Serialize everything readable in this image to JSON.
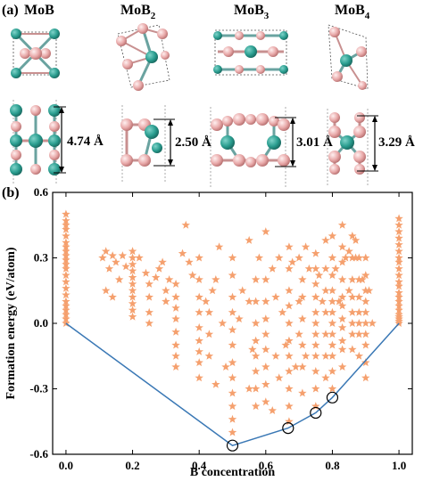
{
  "panel_a": {
    "label": "(a)",
    "structures": [
      {
        "formula_main": "MoB",
        "formula_sub": "",
        "thickness": "4.74 Å"
      },
      {
        "formula_main": "MoB",
        "formula_sub": "2",
        "thickness": "2.50 Å"
      },
      {
        "formula_main": "MoB",
        "formula_sub": "3",
        "thickness": "3.01 Å"
      },
      {
        "formula_main": "MoB",
        "formula_sub": "4",
        "thickness": "3.29 Å"
      }
    ],
    "colors": {
      "mo_atom": "#2a9d8f",
      "b_atom": "#e8a8a8",
      "bond": "#6aa3a0"
    }
  },
  "panel_b": {
    "label": "(b)"
  },
  "chart_data": {
    "type": "scatter",
    "xlabel": "B concentration",
    "ylabel": "Formation energy (eV/atom)",
    "xlim": [
      -0.04,
      1.04
    ],
    "ylim": [
      -0.6,
      0.6
    ],
    "x_ticks": [
      0.0,
      0.2,
      0.4,
      0.6,
      0.8,
      1.0
    ],
    "x_tick_labels": [
      "0.0",
      "0.2",
      "0.4",
      "0.6",
      "0.8",
      "1.0"
    ],
    "y_ticks": [
      -0.6,
      -0.3,
      0.0,
      0.3,
      0.6
    ],
    "y_tick_labels": [
      "-0.6",
      "-0.3",
      "0.0",
      "0.3",
      "0.6"
    ],
    "marker": "star",
    "marker_color": "#f5a06e",
    "hull_color": "#3a78b5",
    "convex_hull": {
      "x": [
        0.0,
        0.5,
        0.667,
        0.75,
        0.8,
        1.0
      ],
      "y": [
        0.0,
        -0.56,
        -0.48,
        -0.41,
        -0.34,
        0.0
      ]
    },
    "stable_circled": {
      "x": [
        0.5,
        0.667,
        0.75,
        0.8
      ],
      "y": [
        -0.56,
        -0.48,
        -0.41,
        -0.34
      ]
    },
    "series": [
      {
        "x": [
          0.0,
          0.0,
          0.0,
          0.0,
          0.0,
          0.0,
          0.0,
          0.0,
          0.0,
          0.0,
          0.0,
          0.0,
          0.0,
          0.0,
          0.0,
          0.0,
          0.0,
          0.0,
          0.0,
          0.0,
          0.0,
          0.0,
          0.11,
          0.12,
          0.13,
          0.14,
          0.15,
          0.16,
          0.12,
          0.14,
          0.17,
          0.18,
          0.2,
          0.2,
          0.2,
          0.2,
          0.2,
          0.2,
          0.2,
          0.2,
          0.2,
          0.2,
          0.2,
          0.22,
          0.24,
          0.25,
          0.25,
          0.25,
          0.25,
          0.27,
          0.28,
          0.29,
          0.3,
          0.3,
          0.31,
          0.33,
          0.33,
          0.33,
          0.33,
          0.33,
          0.33,
          0.33,
          0.33,
          0.35,
          0.36,
          0.37,
          0.38,
          0.4,
          0.4,
          0.4,
          0.4,
          0.4,
          0.4,
          0.4,
          0.4,
          0.4,
          0.42,
          0.43,
          0.43,
          0.43,
          0.44,
          0.45,
          0.45,
          0.46,
          0.47,
          0.48,
          0.5,
          0.5,
          0.5,
          0.5,
          0.5,
          0.5,
          0.5,
          0.5,
          0.5,
          0.5,
          0.5,
          0.5,
          0.52,
          0.53,
          0.55,
          0.55,
          0.55,
          0.56,
          0.57,
          0.57,
          0.57,
          0.57,
          0.57,
          0.57,
          0.57,
          0.57,
          0.58,
          0.6,
          0.6,
          0.6,
          0.6,
          0.6,
          0.6,
          0.6,
          0.6,
          0.6,
          0.62,
          0.62,
          0.63,
          0.63,
          0.64,
          0.64,
          0.65,
          0.66,
          0.67,
          0.67,
          0.67,
          0.67,
          0.67,
          0.67,
          0.67,
          0.67,
          0.67,
          0.67,
          0.67,
          0.68,
          0.69,
          0.7,
          0.7,
          0.7,
          0.71,
          0.71,
          0.71,
          0.71,
          0.71,
          0.71,
          0.72,
          0.72,
          0.73,
          0.75,
          0.75,
          0.75,
          0.75,
          0.75,
          0.75,
          0.75,
          0.75,
          0.75,
          0.75,
          0.75,
          0.75,
          0.76,
          0.77,
          0.78,
          0.78,
          0.78,
          0.78,
          0.78,
          0.78,
          0.78,
          0.8,
          0.8,
          0.8,
          0.8,
          0.8,
          0.8,
          0.8,
          0.8,
          0.8,
          0.8,
          0.8,
          0.8,
          0.81,
          0.82,
          0.83,
          0.83,
          0.83,
          0.83,
          0.83,
          0.83,
          0.83,
          0.83,
          0.83,
          0.83,
          0.84,
          0.85,
          0.86,
          0.86,
          0.86,
          0.86,
          0.86,
          0.86,
          0.86,
          0.86,
          0.87,
          0.88,
          0.88,
          0.88,
          0.88,
          0.88,
          0.88,
          0.88,
          0.89,
          0.9,
          0.9,
          0.9,
          0.9,
          0.9,
          0.9,
          0.9,
          0.9,
          0.9,
          0.9,
          0.91,
          0.92,
          0.83,
          0.85,
          0.87,
          1.0,
          1.0,
          1.0,
          1.0,
          1.0,
          1.0,
          1.0,
          1.0,
          1.0,
          1.0,
          1.0,
          1.0,
          1.0,
          1.0,
          1.0,
          1.0,
          1.0,
          1.0,
          1.0,
          1.0,
          1.0,
          1.0
        ],
        "y": [
          0.5,
          0.47,
          0.45,
          0.43,
          0.4,
          0.37,
          0.35,
          0.33,
          0.31,
          0.29,
          0.27,
          0.25,
          0.22,
          0.19,
          0.16,
          0.13,
          0.1,
          0.08,
          0.06,
          0.04,
          0.02,
          0.0,
          0.3,
          0.33,
          0.25,
          0.31,
          0.28,
          0.2,
          0.15,
          0.12,
          0.31,
          0.26,
          0.33,
          0.3,
          0.27,
          0.24,
          0.21,
          0.18,
          0.15,
          0.12,
          0.09,
          0.06,
          0.03,
          0.3,
          0.23,
          0.18,
          0.12,
          0.05,
          0.0,
          0.21,
          0.25,
          0.28,
          0.15,
          0.1,
          0.2,
          0.18,
          0.12,
          0.07,
          0.02,
          -0.04,
          -0.1,
          -0.15,
          -0.2,
          0.32,
          0.45,
          0.28,
          0.22,
          0.3,
          0.2,
          0.12,
          0.05,
          -0.02,
          -0.08,
          -0.13,
          -0.18,
          -0.25,
          0.1,
          0.05,
          -0.05,
          -0.15,
          0.15,
          0.2,
          -0.28,
          0.35,
          0.0,
          -0.2,
          0.3,
          0.22,
          0.12,
          0.05,
          -0.03,
          -0.1,
          -0.18,
          -0.25,
          -0.32,
          -0.38,
          -0.44,
          -0.5,
          0.02,
          0.15,
          0.38,
          0.1,
          -0.3,
          -0.12,
          0.2,
          0.1,
          0.0,
          -0.08,
          -0.15,
          -0.22,
          -0.3,
          -0.38,
          0.3,
          0.42,
          0.2,
          0.1,
          0.02,
          -0.05,
          -0.12,
          -0.2,
          -0.28,
          -0.36,
          0.25,
          -0.4,
          0.12,
          -0.15,
          0.3,
          -0.25,
          0.05,
          -0.1,
          0.35,
          0.25,
          0.15,
          0.08,
          0.0,
          -0.08,
          -0.15,
          -0.22,
          -0.3,
          -0.38,
          -0.45,
          0.28,
          -0.2,
          0.3,
          0.1,
          -0.05,
          0.2,
          0.12,
          0.02,
          -0.1,
          -0.2,
          -0.32,
          0.35,
          -0.15,
          0.25,
          0.32,
          0.25,
          0.18,
          0.12,
          0.05,
          0.0,
          -0.05,
          -0.1,
          -0.15,
          -0.22,
          -0.3,
          -0.38,
          0.22,
          0.1,
          0.38,
          0.25,
          0.15,
          0.05,
          -0.05,
          -0.15,
          -0.25,
          0.4,
          0.3,
          0.22,
          0.15,
          0.1,
          0.05,
          0.0,
          -0.05,
          -0.1,
          -0.15,
          -0.22,
          -0.3,
          0.25,
          0.1,
          0.35,
          0.28,
          0.2,
          0.12,
          0.08,
          0.02,
          -0.02,
          -0.08,
          -0.12,
          -0.2,
          0.3,
          0.15,
          0.4,
          0.3,
          0.2,
          0.12,
          0.05,
          0.0,
          -0.05,
          -0.12,
          0.38,
          0.3,
          0.2,
          0.12,
          0.05,
          0.0,
          -0.05,
          -0.15,
          0.2,
          0.3,
          0.22,
          0.15,
          0.1,
          0.05,
          0.0,
          -0.05,
          -0.1,
          -0.18,
          -0.25,
          0.15,
          0.0,
          0.45,
          0.33,
          0.3,
          0.48,
          0.45,
          0.42,
          0.39,
          0.36,
          0.33,
          0.3,
          0.28,
          0.25,
          0.22,
          0.19,
          0.17,
          0.14,
          0.12,
          0.1,
          0.08,
          0.06,
          0.04,
          0.03,
          0.02,
          0.01,
          0.0
        ]
      }
    ]
  }
}
